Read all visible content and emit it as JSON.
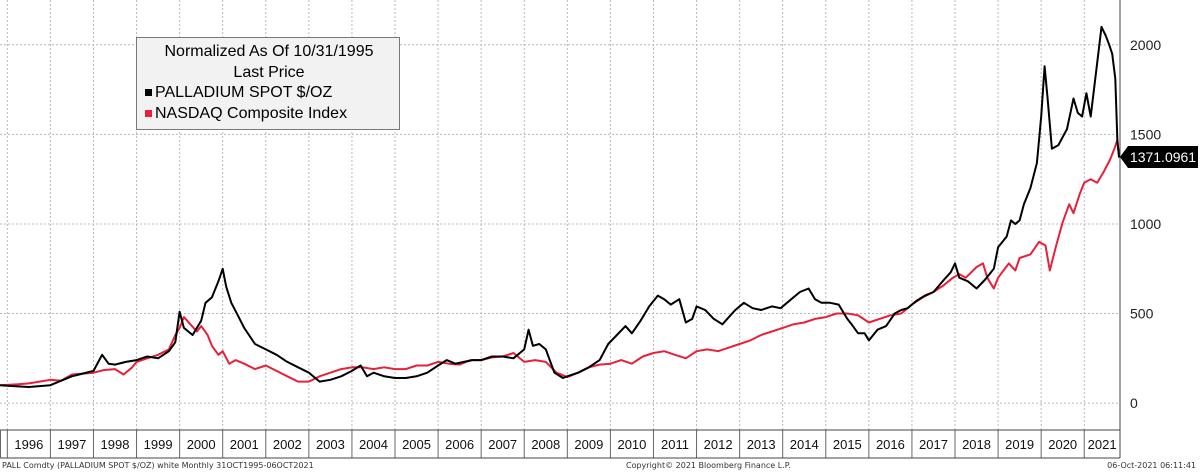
{
  "legend": {
    "title": "Normalized As Of 10/31/1995",
    "subtitle": "Last Price",
    "series": [
      {
        "label": "PALLADIUM SPOT $/OZ",
        "color": "#000000"
      },
      {
        "label": "NASDAQ Composite Index",
        "color": "#e8203a"
      }
    ]
  },
  "last_value_label": "1371.0961",
  "footer": {
    "left": "PALL Comdty (PALLADIUM SPOT $/OZ) white  Monthly 31OCT1995-06OCT2021",
    "center": "Copyright© 2021 Bloomberg Finance L.P.",
    "right": "06-Oct-2021 06:11:41"
  },
  "chart_data": {
    "type": "line",
    "title": "Normalized As Of 10/31/1995",
    "subtitle": "Last Price",
    "xlabel": "",
    "ylabel": "",
    "xlim": [
      1995.83,
      2021.83
    ],
    "ylim": [
      -150,
      2250
    ],
    "y_ticks": [
      0,
      500,
      1000,
      1500,
      2000
    ],
    "x_ticks": [
      "1996",
      "1997",
      "1998",
      "1999",
      "2000",
      "2001",
      "2002",
      "2003",
      "2004",
      "2005",
      "2006",
      "2007",
      "2008",
      "2009",
      "2010",
      "2011",
      "2012",
      "2013",
      "2014",
      "2015",
      "2016",
      "2017",
      "2018",
      "2019",
      "2020",
      "2021"
    ],
    "grid": true,
    "legend_position": "top-left",
    "y_axis_side": "right",
    "series": [
      {
        "name": "PALLADIUM SPOT $/OZ",
        "color": "#000000",
        "points": [
          [
            1995.83,
            100
          ],
          [
            1996.0,
            97
          ],
          [
            1996.5,
            90
          ],
          [
            1997.0,
            100
          ],
          [
            1997.25,
            125
          ],
          [
            1997.5,
            150
          ],
          [
            1997.75,
            165
          ],
          [
            1998.0,
            180
          ],
          [
            1998.2,
            270
          ],
          [
            1998.35,
            220
          ],
          [
            1998.5,
            215
          ],
          [
            1998.75,
            230
          ],
          [
            1999.0,
            240
          ],
          [
            1999.25,
            260
          ],
          [
            1999.5,
            250
          ],
          [
            1999.75,
            290
          ],
          [
            1999.9,
            340
          ],
          [
            2000.0,
            510
          ],
          [
            2000.1,
            420
          ],
          [
            2000.3,
            380
          ],
          [
            2000.5,
            460
          ],
          [
            2000.6,
            560
          ],
          [
            2000.75,
            590
          ],
          [
            2000.9,
            680
          ],
          [
            2001.0,
            750
          ],
          [
            2001.08,
            650
          ],
          [
            2001.2,
            560
          ],
          [
            2001.35,
            490
          ],
          [
            2001.5,
            420
          ],
          [
            2001.75,
            330
          ],
          [
            2002.0,
            300
          ],
          [
            2002.25,
            270
          ],
          [
            2002.5,
            230
          ],
          [
            2002.75,
            200
          ],
          [
            2003.0,
            170
          ],
          [
            2003.25,
            120
          ],
          [
            2003.5,
            130
          ],
          [
            2003.75,
            150
          ],
          [
            2004.0,
            180
          ],
          [
            2004.2,
            210
          ],
          [
            2004.35,
            150
          ],
          [
            2004.5,
            170
          ],
          [
            2004.75,
            150
          ],
          [
            2005.0,
            140
          ],
          [
            2005.25,
            140
          ],
          [
            2005.5,
            150
          ],
          [
            2005.75,
            170
          ],
          [
            2006.0,
            210
          ],
          [
            2006.2,
            240
          ],
          [
            2006.4,
            220
          ],
          [
            2006.6,
            230
          ],
          [
            2006.8,
            240
          ],
          [
            2007.0,
            240
          ],
          [
            2007.25,
            260
          ],
          [
            2007.5,
            260
          ],
          [
            2007.75,
            250
          ],
          [
            2008.0,
            300
          ],
          [
            2008.1,
            410
          ],
          [
            2008.2,
            320
          ],
          [
            2008.35,
            330
          ],
          [
            2008.5,
            300
          ],
          [
            2008.7,
            170
          ],
          [
            2008.9,
            140
          ],
          [
            2009.0,
            150
          ],
          [
            2009.25,
            170
          ],
          [
            2009.5,
            200
          ],
          [
            2009.75,
            240
          ],
          [
            2009.95,
            330
          ],
          [
            2010.15,
            380
          ],
          [
            2010.35,
            430
          ],
          [
            2010.5,
            390
          ],
          [
            2010.7,
            460
          ],
          [
            2010.9,
            540
          ],
          [
            2011.1,
            600
          ],
          [
            2011.25,
            580
          ],
          [
            2011.4,
            550
          ],
          [
            2011.6,
            580
          ],
          [
            2011.75,
            450
          ],
          [
            2011.9,
            470
          ],
          [
            2012.0,
            540
          ],
          [
            2012.2,
            520
          ],
          [
            2012.4,
            470
          ],
          [
            2012.6,
            440
          ],
          [
            2012.75,
            480
          ],
          [
            2012.9,
            520
          ],
          [
            2013.1,
            560
          ],
          [
            2013.3,
            530
          ],
          [
            2013.5,
            520
          ],
          [
            2013.75,
            540
          ],
          [
            2013.95,
            530
          ],
          [
            2014.2,
            580
          ],
          [
            2014.4,
            620
          ],
          [
            2014.6,
            640
          ],
          [
            2014.75,
            580
          ],
          [
            2014.9,
            560
          ],
          [
            2015.1,
            560
          ],
          [
            2015.3,
            550
          ],
          [
            2015.5,
            470
          ],
          [
            2015.6,
            440
          ],
          [
            2015.75,
            390
          ],
          [
            2015.9,
            390
          ],
          [
            2016.0,
            350
          ],
          [
            2016.2,
            410
          ],
          [
            2016.4,
            430
          ],
          [
            2016.6,
            500
          ],
          [
            2016.75,
            520
          ],
          [
            2016.9,
            530
          ],
          [
            2017.1,
            570
          ],
          [
            2017.3,
            600
          ],
          [
            2017.5,
            620
          ],
          [
            2017.75,
            690
          ],
          [
            2017.9,
            730
          ],
          [
            2018.0,
            780
          ],
          [
            2018.1,
            700
          ],
          [
            2018.3,
            680
          ],
          [
            2018.5,
            640
          ],
          [
            2018.7,
            690
          ],
          [
            2018.9,
            750
          ],
          [
            2019.0,
            870
          ],
          [
            2019.2,
            930
          ],
          [
            2019.3,
            1020
          ],
          [
            2019.4,
            1000
          ],
          [
            2019.5,
            1020
          ],
          [
            2019.6,
            1110
          ],
          [
            2019.75,
            1200
          ],
          [
            2019.9,
            1340
          ],
          [
            2020.0,
            1600
          ],
          [
            2020.08,
            1880
          ],
          [
            2020.15,
            1700
          ],
          [
            2020.25,
            1420
          ],
          [
            2020.4,
            1440
          ],
          [
            2020.6,
            1530
          ],
          [
            2020.75,
            1700
          ],
          [
            2020.85,
            1620
          ],
          [
            2020.95,
            1600
          ],
          [
            2021.05,
            1730
          ],
          [
            2021.15,
            1600
          ],
          [
            2021.3,
            1900
          ],
          [
            2021.4,
            2100
          ],
          [
            2021.5,
            2050
          ],
          [
            2021.58,
            2000
          ],
          [
            2021.65,
            1950
          ],
          [
            2021.72,
            1810
          ],
          [
            2021.77,
            1460
          ],
          [
            2021.81,
            1371
          ]
        ]
      },
      {
        "name": "NASDAQ Composite Index",
        "color": "#e8203a",
        "points": [
          [
            1995.83,
            100
          ],
          [
            1996.25,
            105
          ],
          [
            1996.5,
            110
          ],
          [
            1996.75,
            120
          ],
          [
            1997.0,
            130
          ],
          [
            1997.25,
            125
          ],
          [
            1997.5,
            160
          ],
          [
            1997.75,
            165
          ],
          [
            1998.0,
            170
          ],
          [
            1998.25,
            185
          ],
          [
            1998.5,
            190
          ],
          [
            1998.7,
            160
          ],
          [
            1998.9,
            200
          ],
          [
            1999.0,
            230
          ],
          [
            1999.25,
            250
          ],
          [
            1999.5,
            270
          ],
          [
            1999.75,
            300
          ],
          [
            1999.9,
            380
          ],
          [
            2000.0,
            420
          ],
          [
            2000.1,
            480
          ],
          [
            2000.25,
            440
          ],
          [
            2000.4,
            400
          ],
          [
            2000.5,
            430
          ],
          [
            2000.65,
            380
          ],
          [
            2000.75,
            320
          ],
          [
            2000.9,
            270
          ],
          [
            2001.0,
            290
          ],
          [
            2001.15,
            220
          ],
          [
            2001.3,
            240
          ],
          [
            2001.5,
            220
          ],
          [
            2001.75,
            190
          ],
          [
            2002.0,
            210
          ],
          [
            2002.25,
            180
          ],
          [
            2002.5,
            150
          ],
          [
            2002.75,
            120
          ],
          [
            2003.0,
            120
          ],
          [
            2003.25,
            150
          ],
          [
            2003.5,
            170
          ],
          [
            2003.75,
            190
          ],
          [
            2004.0,
            200
          ],
          [
            2004.25,
            200
          ],
          [
            2004.5,
            190
          ],
          [
            2004.75,
            200
          ],
          [
            2005.0,
            190
          ],
          [
            2005.25,
            190
          ],
          [
            2005.5,
            210
          ],
          [
            2005.75,
            210
          ],
          [
            2006.0,
            230
          ],
          [
            2006.25,
            220
          ],
          [
            2006.5,
            215
          ],
          [
            2006.75,
            240
          ],
          [
            2007.0,
            240
          ],
          [
            2007.25,
            255
          ],
          [
            2007.5,
            260
          ],
          [
            2007.75,
            280
          ],
          [
            2008.0,
            230
          ],
          [
            2008.25,
            240
          ],
          [
            2008.5,
            230
          ],
          [
            2008.75,
            170
          ],
          [
            2009.0,
            145
          ],
          [
            2009.25,
            170
          ],
          [
            2009.5,
            200
          ],
          [
            2009.75,
            215
          ],
          [
            2010.0,
            220
          ],
          [
            2010.25,
            240
          ],
          [
            2010.5,
            220
          ],
          [
            2010.75,
            260
          ],
          [
            2011.0,
            280
          ],
          [
            2011.25,
            290
          ],
          [
            2011.5,
            270
          ],
          [
            2011.75,
            250
          ],
          [
            2012.0,
            290
          ],
          [
            2012.25,
            300
          ],
          [
            2012.5,
            290
          ],
          [
            2012.75,
            310
          ],
          [
            2013.0,
            330
          ],
          [
            2013.25,
            350
          ],
          [
            2013.5,
            380
          ],
          [
            2013.75,
            400
          ],
          [
            2014.0,
            420
          ],
          [
            2014.25,
            440
          ],
          [
            2014.5,
            450
          ],
          [
            2014.75,
            470
          ],
          [
            2015.0,
            480
          ],
          [
            2015.25,
            500
          ],
          [
            2015.5,
            500
          ],
          [
            2015.75,
            490
          ],
          [
            2016.0,
            450
          ],
          [
            2016.25,
            470
          ],
          [
            2016.5,
            490
          ],
          [
            2016.75,
            500
          ],
          [
            2017.0,
            550
          ],
          [
            2017.25,
            590
          ],
          [
            2017.5,
            620
          ],
          [
            2017.75,
            660
          ],
          [
            2017.95,
            700
          ],
          [
            2018.1,
            720
          ],
          [
            2018.25,
            700
          ],
          [
            2018.5,
            760
          ],
          [
            2018.65,
            780
          ],
          [
            2018.75,
            700
          ],
          [
            2018.9,
            640
          ],
          [
            2019.0,
            700
          ],
          [
            2019.25,
            780
          ],
          [
            2019.4,
            740
          ],
          [
            2019.5,
            810
          ],
          [
            2019.75,
            830
          ],
          [
            2019.95,
            900
          ],
          [
            2020.1,
            880
          ],
          [
            2020.2,
            740
          ],
          [
            2020.35,
            880
          ],
          [
            2020.5,
            1010
          ],
          [
            2020.65,
            1110
          ],
          [
            2020.75,
            1060
          ],
          [
            2020.9,
            1170
          ],
          [
            2021.0,
            1230
          ],
          [
            2021.15,
            1250
          ],
          [
            2021.3,
            1230
          ],
          [
            2021.45,
            1290
          ],
          [
            2021.6,
            1360
          ],
          [
            2021.7,
            1420
          ],
          [
            2021.77,
            1470
          ],
          [
            2021.81,
            1371
          ]
        ]
      }
    ]
  }
}
